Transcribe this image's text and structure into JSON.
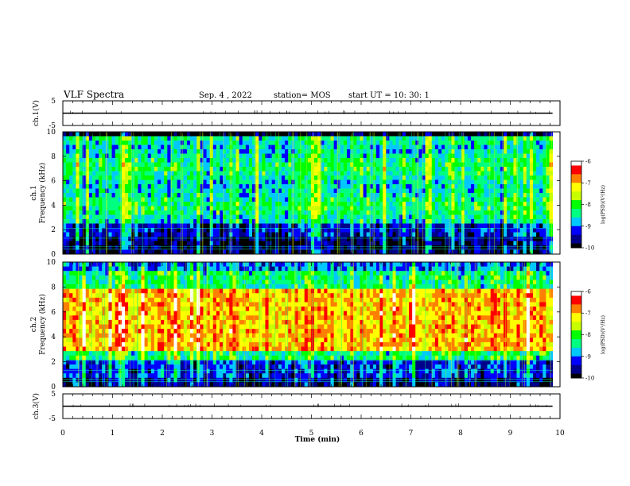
{
  "header": {
    "title": "VLF Spectra",
    "date": "Sep. 4 , 2022",
    "station": "station= MOS",
    "start": "start UT =   10: 30: 1"
  },
  "colors": {
    "spectrum_scale": [
      "#000000",
      "#00008b",
      "#0000ff",
      "#00c8ff",
      "#00ff80",
      "#00ff00",
      "#c8ff00",
      "#ffff00",
      "#ff8000",
      "#ff0000",
      "#ffffff"
    ]
  },
  "chart_data": [
    {
      "type": "line",
      "panel": "ch1-voltage",
      "ylabel": "ch.1(V)",
      "y_ticks": [
        "5",
        "-5"
      ],
      "ylim": [
        -5,
        5
      ],
      "level": 0
    },
    {
      "type": "heatmap",
      "panel": "ch1-spectrogram",
      "ylabel_top": "ch.1",
      "ylabel": "Frequency (kHz)",
      "y_ticks": [
        "0",
        "2",
        "4",
        "6",
        "8",
        "10"
      ],
      "ylim": [
        0,
        10
      ],
      "colorbar": {
        "label": "log(PSD)(V²/Hz)",
        "ticks": [
          "-6",
          "-7",
          "-8",
          "-9",
          "-10"
        ],
        "range": [
          -10,
          -6
        ]
      },
      "band_kHz": [
        2.5,
        9.5
      ],
      "dominant_band_level": -8.5
    },
    {
      "type": "heatmap",
      "panel": "ch2-spectrogram",
      "ylabel_top": "ch.2",
      "ylabel": "Frequency (kHz)",
      "y_ticks": [
        "0",
        "2",
        "4",
        "6",
        "8",
        "10"
      ],
      "ylim": [
        0,
        10
      ],
      "colorbar": {
        "label": "log(PSD)(V²/Hz)",
        "ticks": [
          "-6",
          "-7",
          "-8",
          "-9",
          "-10"
        ],
        "range": [
          -10,
          -6
        ]
      },
      "band_kHz": [
        3,
        8
      ],
      "dominant_band_level": -7
    },
    {
      "type": "line",
      "panel": "ch3-voltage",
      "ylabel": "ch.3(V)",
      "y_ticks": [
        "5",
        "-5"
      ],
      "ylim": [
        -5,
        5
      ],
      "level": 0
    }
  ],
  "x_axis": {
    "label": "Time (min)",
    "ticks": [
      "0",
      "1",
      "2",
      "3",
      "4",
      "5",
      "6",
      "7",
      "8",
      "9",
      "10"
    ],
    "xlim": [
      0,
      10
    ],
    "data_end": 9.85
  }
}
